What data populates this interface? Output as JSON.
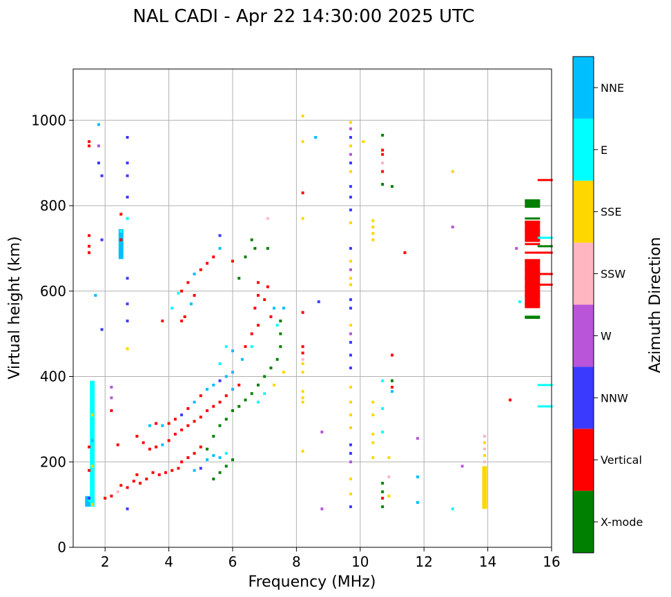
{
  "chart_data": {
    "type": "scatter",
    "title": "NAL CADI - Apr 22 14:30:00 2025 UTC",
    "xlabel": "Frequency (MHz)",
    "ylabel": "Virtual height (km)",
    "xlim": [
      1.0,
      16.0
    ],
    "ylim": [
      0,
      1120
    ],
    "xticks": [
      2,
      4,
      6,
      8,
      10,
      12,
      14,
      16
    ],
    "yticks": [
      0,
      200,
      400,
      600,
      800,
      1000
    ],
    "grid": true,
    "colorbar": {
      "label": "Azimuth Direction",
      "categories": [
        {
          "name": "X-mode",
          "color": "#008000"
        },
        {
          "name": "Vertical",
          "color": "#ff0000"
        },
        {
          "name": "NNW",
          "color": "#3a3aff"
        },
        {
          "name": "W",
          "color": "#b855d8"
        },
        {
          "name": "SSW",
          "color": "#ffb6c1"
        },
        {
          "name": "SSE",
          "color": "#ffd700"
        },
        {
          "name": "E",
          "color": "#00ffff"
        },
        {
          "name": "NNE",
          "color": "#00bfff"
        }
      ]
    },
    "points": [
      [
        1.5,
        110,
        "E"
      ],
      [
        1.5,
        100,
        "NNE"
      ],
      [
        1.5,
        115,
        "NNW"
      ],
      [
        1.5,
        235,
        "Vertical"
      ],
      [
        1.5,
        180,
        "Vertical"
      ],
      [
        1.5,
        950,
        "Vertical"
      ],
      [
        1.5,
        940,
        "Vertical"
      ],
      [
        1.5,
        730,
        "Vertical"
      ],
      [
        1.5,
        705,
        "Vertical"
      ],
      [
        1.5,
        690,
        "Vertical"
      ],
      [
        1.6,
        100,
        "SSE"
      ],
      [
        1.6,
        130,
        "E"
      ],
      [
        1.6,
        160,
        "E"
      ],
      [
        1.6,
        190,
        "SSE"
      ],
      [
        1.6,
        220,
        "E"
      ],
      [
        1.6,
        250,
        "NNE"
      ],
      [
        1.6,
        280,
        "E"
      ],
      [
        1.6,
        310,
        "SSE"
      ],
      [
        1.6,
        340,
        "E"
      ],
      [
        1.6,
        370,
        "E"
      ],
      [
        1.6,
        385,
        "E"
      ],
      [
        1.7,
        590,
        "NNE"
      ],
      [
        1.8,
        990,
        "NNE"
      ],
      [
        1.8,
        940,
        "W"
      ],
      [
        1.8,
        900,
        "NNW"
      ],
      [
        1.9,
        870,
        "NNW"
      ],
      [
        1.9,
        720,
        "NNW"
      ],
      [
        1.9,
        510,
        "NNW"
      ],
      [
        2.2,
        375,
        "W"
      ],
      [
        2.2,
        350,
        "W"
      ],
      [
        2.2,
        320,
        "Vertical"
      ],
      [
        2.4,
        240,
        "Vertical"
      ],
      [
        2.5,
        780,
        "Vertical"
      ],
      [
        2.5,
        740,
        "E"
      ],
      [
        2.5,
        720,
        "Vertical"
      ],
      [
        2.5,
        700,
        "NNE"
      ],
      [
        2.5,
        680,
        "NNE"
      ],
      [
        2.7,
        960,
        "NNW"
      ],
      [
        2.7,
        900,
        "NNW"
      ],
      [
        2.7,
        870,
        "NNW"
      ],
      [
        2.7,
        820,
        "NNW"
      ],
      [
        2.7,
        770,
        "E"
      ],
      [
        2.7,
        630,
        "NNW"
      ],
      [
        2.7,
        570,
        "NNW"
      ],
      [
        2.7,
        530,
        "NNW"
      ],
      [
        2.7,
        465,
        "SSE"
      ],
      [
        2.7,
        90,
        "NNW"
      ],
      [
        2.0,
        115,
        "Vertical"
      ],
      [
        2.2,
        120,
        "Vertical"
      ],
      [
        2.4,
        130,
        "SSW"
      ],
      [
        2.5,
        145,
        "Vertical"
      ],
      [
        2.7,
        140,
        "Vertical"
      ],
      [
        2.9,
        155,
        "Vertical"
      ],
      [
        3.0,
        170,
        "Vertical"
      ],
      [
        3.1,
        150,
        "Vertical"
      ],
      [
        3.3,
        160,
        "Vertical"
      ],
      [
        3.5,
        175,
        "Vertical"
      ],
      [
        3.7,
        170,
        "Vertical"
      ],
      [
        3.9,
        175,
        "Vertical"
      ],
      [
        4.1,
        180,
        "Vertical"
      ],
      [
        4.3,
        185,
        "Vertical"
      ],
      [
        4.4,
        200,
        "Vertical"
      ],
      [
        4.6,
        210,
        "Vertical"
      ],
      [
        4.8,
        220,
        "Vertical"
      ],
      [
        5.0,
        235,
        "Vertical"
      ],
      [
        3.0,
        260,
        "Vertical"
      ],
      [
        3.2,
        245,
        "Vertical"
      ],
      [
        3.4,
        230,
        "Vertical"
      ],
      [
        3.6,
        235,
        "Vertical"
      ],
      [
        3.8,
        240,
        "NNE"
      ],
      [
        4.0,
        250,
        "Vertical"
      ],
      [
        4.2,
        265,
        "Vertical"
      ],
      [
        4.4,
        275,
        "Vertical"
      ],
      [
        4.6,
        285,
        "Vertical"
      ],
      [
        4.8,
        295,
        "Vertical"
      ],
      [
        5.0,
        305,
        "Vertical"
      ],
      [
        5.2,
        320,
        "Vertical"
      ],
      [
        5.4,
        330,
        "Vertical"
      ],
      [
        5.6,
        340,
        "Vertical"
      ],
      [
        5.8,
        355,
        "Vertical"
      ],
      [
        6.0,
        370,
        "NNE"
      ],
      [
        6.2,
        380,
        "Vertical"
      ],
      [
        3.4,
        285,
        "NNE"
      ],
      [
        3.6,
        290,
        "Vertical"
      ],
      [
        3.8,
        285,
        "NNE"
      ],
      [
        4.0,
        290,
        "Vertical"
      ],
      [
        4.2,
        300,
        "Vertical"
      ],
      [
        4.4,
        310,
        "NNW"
      ],
      [
        4.6,
        325,
        "Vertical"
      ],
      [
        4.8,
        340,
        "NNE"
      ],
      [
        5.0,
        355,
        "Vertical"
      ],
      [
        5.2,
        370,
        "NNE"
      ],
      [
        5.4,
        380,
        "NNE"
      ],
      [
        5.6,
        390,
        "NNW"
      ],
      [
        5.8,
        400,
        "NNE"
      ],
      [
        6.0,
        410,
        "NNE"
      ],
      [
        4.4,
        530,
        "Vertical"
      ],
      [
        4.5,
        540,
        "Vertical"
      ],
      [
        4.7,
        570,
        "NNE"
      ],
      [
        4.8,
        590,
        "Vertical"
      ],
      [
        4.4,
        600,
        "Vertical"
      ],
      [
        4.6,
        620,
        "Vertical"
      ],
      [
        4.8,
        640,
        "NNE"
      ],
      [
        5.0,
        650,
        "Vertical"
      ],
      [
        5.2,
        665,
        "Vertical"
      ],
      [
        5.4,
        680,
        "Vertical"
      ],
      [
        5.6,
        700,
        "NNE"
      ],
      [
        5.6,
        730,
        "NNW"
      ],
      [
        3.8,
        530,
        "Vertical"
      ],
      [
        4.1,
        560,
        "E"
      ],
      [
        4.3,
        595,
        "E"
      ],
      [
        5.4,
        160,
        "X-mode"
      ],
      [
        5.6,
        175,
        "X-mode"
      ],
      [
        5.8,
        190,
        "X-mode"
      ],
      [
        6.0,
        205,
        "X-mode"
      ],
      [
        5.2,
        230,
        "X-mode"
      ],
      [
        5.4,
        260,
        "X-mode"
      ],
      [
        5.6,
        285,
        "X-mode"
      ],
      [
        5.8,
        300,
        "X-mode"
      ],
      [
        6.0,
        320,
        "X-mode"
      ],
      [
        6.2,
        330,
        "X-mode"
      ],
      [
        6.4,
        345,
        "X-mode"
      ],
      [
        6.6,
        360,
        "X-mode"
      ],
      [
        6.8,
        380,
        "X-mode"
      ],
      [
        7.0,
        400,
        "X-mode"
      ],
      [
        7.2,
        420,
        "X-mode"
      ],
      [
        7.4,
        440,
        "X-mode"
      ],
      [
        7.5,
        470,
        "X-mode"
      ],
      [
        7.5,
        500,
        "X-mode"
      ],
      [
        7.5,
        530,
        "X-mode"
      ],
      [
        7.6,
        560,
        "NNE"
      ],
      [
        5.2,
        205,
        "NNE"
      ],
      [
        5.4,
        215,
        "NNE"
      ],
      [
        5.6,
        210,
        "NNE"
      ],
      [
        5.8,
        220,
        "E"
      ],
      [
        4.8,
        180,
        "NNE"
      ],
      [
        5.0,
        185,
        "NNW"
      ],
      [
        6.4,
        470,
        "Vertical"
      ],
      [
        6.6,
        500,
        "Vertical"
      ],
      [
        6.8,
        520,
        "Vertical"
      ],
      [
        6.7,
        560,
        "Vertical"
      ],
      [
        6.8,
        590,
        "Vertical"
      ],
      [
        6.8,
        620,
        "Vertical"
      ],
      [
        7.0,
        580,
        "Vertical"
      ],
      [
        7.1,
        610,
        "Vertical"
      ],
      [
        7.2,
        540,
        "Vertical"
      ],
      [
        7.4,
        520,
        "E"
      ],
      [
        7.3,
        560,
        "NNE"
      ],
      [
        6.6,
        720,
        "X-mode"
      ],
      [
        6.7,
        700,
        "X-mode"
      ],
      [
        6.4,
        680,
        "X-mode"
      ],
      [
        6.2,
        630,
        "X-mode"
      ],
      [
        6.0,
        670,
        "Vertical"
      ],
      [
        7.1,
        770,
        "SSW"
      ],
      [
        7.1,
        700,
        "X-mode"
      ],
      [
        7.6,
        410,
        "SSE"
      ],
      [
        7.3,
        380,
        "SSE"
      ],
      [
        7.0,
        360,
        "E"
      ],
      [
        6.8,
        340,
        "E"
      ],
      [
        6.6,
        470,
        "E"
      ],
      [
        6.3,
        440,
        "NNE"
      ],
      [
        6.0,
        460,
        "NNE"
      ],
      [
        5.8,
        470,
        "E"
      ],
      [
        5.6,
        430,
        "E"
      ],
      [
        8.2,
        1010,
        "SSE"
      ],
      [
        8.2,
        950,
        "SSE"
      ],
      [
        8.2,
        830,
        "Vertical"
      ],
      [
        8.2,
        770,
        "SSE"
      ],
      [
        8.2,
        550,
        "Vertical"
      ],
      [
        8.2,
        470,
        "Vertical"
      ],
      [
        8.2,
        455,
        "Vertical"
      ],
      [
        8.2,
        440,
        "SSW"
      ],
      [
        8.2,
        430,
        "SSE"
      ],
      [
        8.2,
        410,
        "SSE"
      ],
      [
        8.2,
        365,
        "SSE"
      ],
      [
        8.2,
        350,
        "SSE"
      ],
      [
        8.2,
        340,
        "SSE"
      ],
      [
        8.2,
        225,
        "SSE"
      ],
      [
        8.6,
        960,
        "NNE"
      ],
      [
        8.7,
        575,
        "NNW"
      ],
      [
        8.8,
        270,
        "W"
      ],
      [
        8.8,
        90,
        "W"
      ],
      [
        9.7,
        995,
        "SSE"
      ],
      [
        9.7,
        980,
        "W"
      ],
      [
        9.7,
        960,
        "NNW"
      ],
      [
        9.7,
        940,
        "SSE"
      ],
      [
        9.7,
        920,
        "W"
      ],
      [
        9.7,
        900,
        "NNW"
      ],
      [
        9.7,
        880,
        "SSE"
      ],
      [
        9.7,
        845,
        "NNW"
      ],
      [
        9.7,
        820,
        "NNW"
      ],
      [
        9.7,
        790,
        "NNW"
      ],
      [
        9.7,
        760,
        "SSE"
      ],
      [
        9.7,
        700,
        "NNW"
      ],
      [
        9.7,
        670,
        "SSE"
      ],
      [
        9.7,
        650,
        "W"
      ],
      [
        9.7,
        630,
        "SSE"
      ],
      [
        9.7,
        615,
        "SSE"
      ],
      [
        9.7,
        580,
        "NNW"
      ],
      [
        9.7,
        560,
        "NNW"
      ],
      [
        9.7,
        520,
        "SSE"
      ],
      [
        9.7,
        500,
        "W"
      ],
      [
        9.7,
        480,
        "NNW"
      ],
      [
        9.7,
        450,
        "NNW"
      ],
      [
        9.7,
        420,
        "NNW"
      ],
      [
        9.7,
        375,
        "SSE"
      ],
      [
        9.7,
        340,
        "SSE"
      ],
      [
        9.7,
        310,
        "SSE"
      ],
      [
        9.7,
        280,
        "SSE"
      ],
      [
        9.7,
        240,
        "NNW"
      ],
      [
        9.7,
        220,
        "NNW"
      ],
      [
        9.7,
        200,
        "W"
      ],
      [
        9.7,
        160,
        "SSE"
      ],
      [
        9.7,
        125,
        "SSE"
      ],
      [
        9.7,
        95,
        "NNW"
      ],
      [
        10.1,
        950,
        "SSE"
      ],
      [
        10.7,
        965,
        "X-mode"
      ],
      [
        10.7,
        930,
        "Vertical"
      ],
      [
        10.7,
        920,
        "Vertical"
      ],
      [
        10.7,
        900,
        "SSW"
      ],
      [
        10.7,
        880,
        "Vertical"
      ],
      [
        10.7,
        850,
        "X-mode"
      ],
      [
        11.0,
        845,
        "X-mode"
      ],
      [
        10.4,
        765,
        "SSE"
      ],
      [
        10.4,
        750,
        "SSE"
      ],
      [
        10.4,
        735,
        "SSE"
      ],
      [
        10.4,
        720,
        "SSE"
      ],
      [
        10.7,
        390,
        "E"
      ],
      [
        10.7,
        325,
        "E"
      ],
      [
        10.4,
        340,
        "SSE"
      ],
      [
        10.4,
        310,
        "SSE"
      ],
      [
        10.7,
        270,
        "E"
      ],
      [
        10.4,
        265,
        "SSE"
      ],
      [
        10.4,
        245,
        "SSE"
      ],
      [
        10.4,
        210,
        "SSE"
      ],
      [
        10.9,
        210,
        "SSE"
      ],
      [
        10.9,
        165,
        "SSW"
      ],
      [
        11.0,
        450,
        "Vertical"
      ],
      [
        11.0,
        390,
        "X-mode"
      ],
      [
        11.0,
        375,
        "Vertical"
      ],
      [
        11.0,
        365,
        "NNE"
      ],
      [
        10.7,
        150,
        "X-mode"
      ],
      [
        10.7,
        130,
        "X-mode"
      ],
      [
        10.7,
        115,
        "Vertical"
      ],
      [
        10.7,
        95,
        "X-mode"
      ],
      [
        10.9,
        120,
        "SSE"
      ],
      [
        11.4,
        690,
        "Vertical"
      ],
      [
        11.8,
        255,
        "W"
      ],
      [
        11.8,
        165,
        "NNE"
      ],
      [
        11.8,
        105,
        "NNE"
      ],
      [
        12.9,
        880,
        "SSE"
      ],
      [
        12.9,
        750,
        "W"
      ],
      [
        12.9,
        90,
        "E"
      ],
      [
        13.2,
        190,
        "W"
      ],
      [
        13.9,
        260,
        "SSW"
      ],
      [
        13.9,
        245,
        "SSE"
      ],
      [
        13.9,
        230,
        "SSW"
      ],
      [
        13.9,
        215,
        "SSE"
      ],
      [
        13.9,
        200,
        "SSW"
      ],
      [
        13.9,
        185,
        "SSE"
      ],
      [
        13.9,
        165,
        "SSE"
      ],
      [
        13.9,
        150,
        "SSE"
      ],
      [
        13.9,
        135,
        "SSE"
      ],
      [
        13.9,
        120,
        "SSE"
      ],
      [
        13.9,
        105,
        "SSE"
      ],
      [
        13.9,
        95,
        "SSE"
      ],
      [
        14.7,
        345,
        "Vertical"
      ],
      [
        14.9,
        700,
        "W"
      ],
      [
        15.0,
        575,
        "E"
      ],
      [
        15.4,
        810,
        "X-mode"
      ],
      [
        15.4,
        770,
        "X-mode"
      ],
      [
        15.4,
        760,
        "Vertical"
      ],
      [
        15.4,
        740,
        "Vertical"
      ],
      [
        15.4,
        710,
        "Vertical"
      ],
      [
        15.4,
        690,
        "Vertical"
      ],
      [
        15.4,
        670,
        "Vertical"
      ],
      [
        15.4,
        650,
        "Vertical"
      ],
      [
        15.4,
        630,
        "Vertical"
      ],
      [
        15.4,
        610,
        "Vertical"
      ],
      [
        15.4,
        590,
        "Vertical"
      ],
      [
        15.4,
        570,
        "Vertical"
      ],
      [
        15.4,
        540,
        "X-mode"
      ],
      [
        15.8,
        860,
        "Vertical"
      ],
      [
        15.8,
        725,
        "E"
      ],
      [
        15.8,
        705,
        "X-mode"
      ],
      [
        15.8,
        690,
        "Vertical"
      ],
      [
        15.8,
        640,
        "Vertical"
      ],
      [
        15.8,
        615,
        "Vertical"
      ],
      [
        15.8,
        380,
        "E"
      ],
      [
        15.8,
        330,
        "E"
      ]
    ],
    "bands": [
      {
        "f": 1.6,
        "h0": 95,
        "h1": 390,
        "cat": "E"
      },
      {
        "f": 1.45,
        "h0": 95,
        "h1": 120,
        "cat": "NNE"
      },
      {
        "f": 2.5,
        "h0": 675,
        "h1": 745,
        "cat": "NNE"
      },
      {
        "f": 13.9,
        "h0": 90,
        "h1": 190,
        "cat": "SSE"
      },
      {
        "f": 15.4,
        "h0": 795,
        "h1": 815,
        "cat": "X-mode"
      },
      {
        "f": 15.4,
        "h0": 560,
        "h1": 675,
        "cat": "Vertical"
      },
      {
        "f": 15.4,
        "h0": 715,
        "h1": 765,
        "cat": "Vertical"
      },
      {
        "f": 15.4,
        "h0": 535,
        "h1": 542,
        "cat": "X-mode"
      }
    ]
  }
}
